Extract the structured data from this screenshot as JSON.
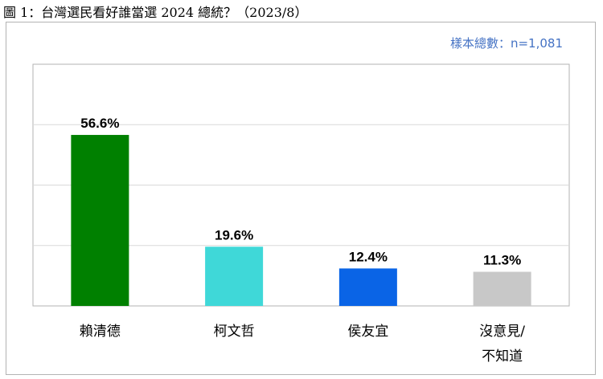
{
  "figure": {
    "title": "圖 1：台灣選民看好誰當選 2024 總統？（2023/8）",
    "sample_note": "樣本總數：n=1,081"
  },
  "chart_data": {
    "type": "bar",
    "title": "圖 1：台灣選民看好誰當選 2024 總統？（2023/8）",
    "annotation": "樣本總數：n=1,081",
    "categories": [
      "賴清德",
      "柯文哲",
      "侯友宜",
      "沒意見/不知道"
    ],
    "category_lines": [
      [
        "賴清德"
      ],
      [
        "柯文哲"
      ],
      [
        "侯友宜"
      ],
      [
        "沒意見/",
        "不知道"
      ]
    ],
    "values": [
      56.6,
      19.6,
      12.4,
      11.3
    ],
    "value_labels": [
      "56.6%",
      "19.6%",
      "12.4%",
      "11.3%"
    ],
    "colors": [
      "#008000",
      "#3fd8d8",
      "#0a64e6",
      "#c8c8c8"
    ],
    "ylim": [
      0,
      80
    ],
    "grid": true,
    "xlabel": "",
    "ylabel": "",
    "legend": "none"
  }
}
